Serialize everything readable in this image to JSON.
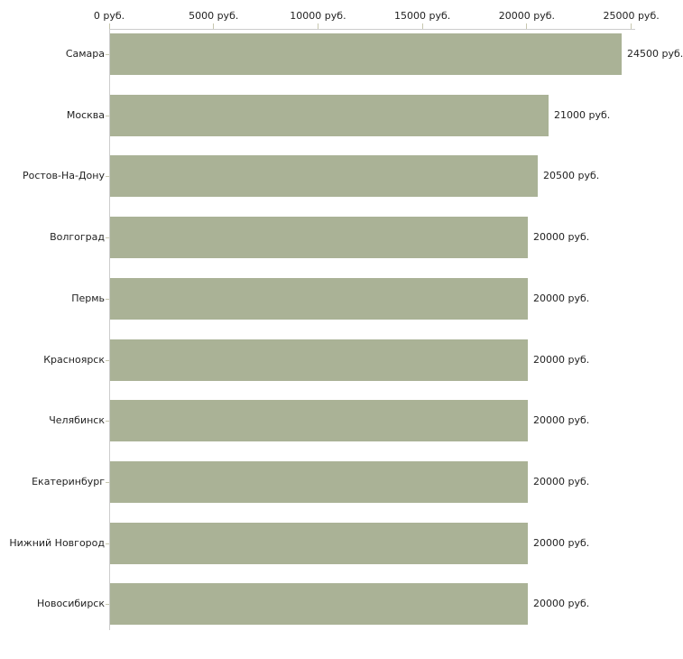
{
  "chart_data": {
    "type": "bar",
    "orientation": "horizontal",
    "categories": [
      "Самара",
      "Москва",
      "Ростов-На-Дону",
      "Волгоград",
      "Пермь",
      "Красноярск",
      "Челябинск",
      "Екатеринбург",
      "Нижний Новгород",
      "Новосибирск"
    ],
    "values": [
      24500,
      21000,
      20500,
      20000,
      20000,
      20000,
      20000,
      20000,
      20000,
      20000
    ],
    "value_labels": [
      "24500 руб.",
      "21000 руб.",
      "20500 руб.",
      "20000 руб.",
      "20000 руб.",
      "20000 руб.",
      "20000 руб.",
      "20000 руб.",
      "20000 руб.",
      "20000 руб."
    ],
    "x_tick_labels": [
      "0 руб.",
      "5000 руб.",
      "10000 руб.",
      "15000 руб.",
      "20000 руб.",
      "25000 руб."
    ],
    "x_tick_values": [
      0,
      5000,
      10000,
      15000,
      20000,
      25000
    ],
    "xlim": [
      0,
      25000
    ],
    "axis_position": "top",
    "grid": false,
    "legend": false,
    "title": "",
    "xlabel": "",
    "ylabel": "",
    "colors": {
      "bar_fill": "#aab296",
      "axis_line": "#cccccc",
      "tick_mark": "#c7c7af",
      "text": "#222222",
      "background": "#ffffff"
    }
  }
}
